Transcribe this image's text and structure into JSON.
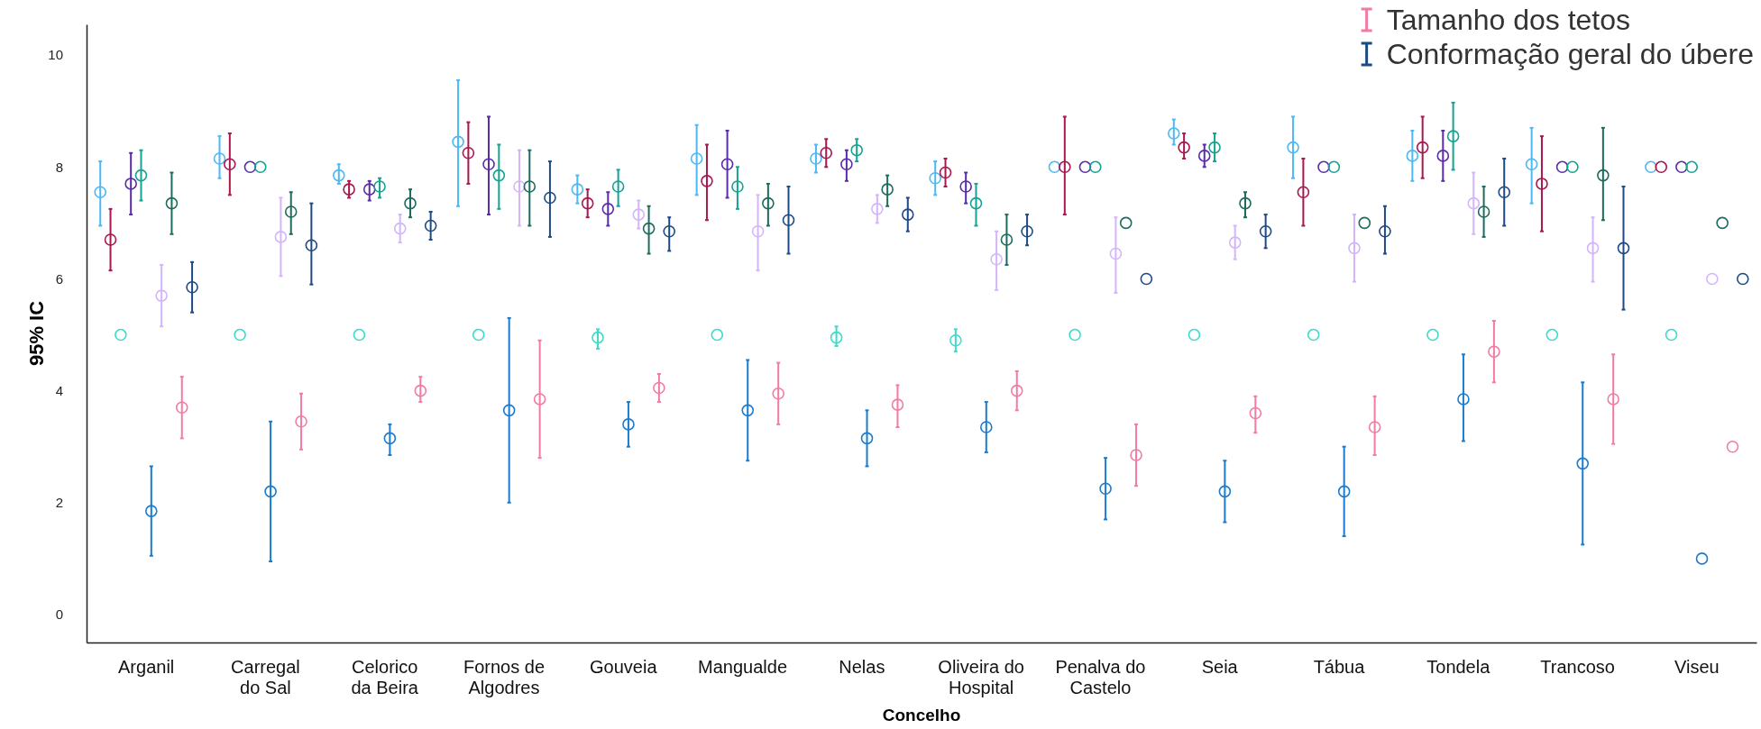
{
  "chart_data": {
    "type": "scatter",
    "xlabel": "Concelho",
    "ylabel": "95% IC",
    "categories": [
      "Arganil",
      "Carregal do Sal",
      "Celorico da Beira",
      "Fornos de Algodres",
      "Gouveia",
      "Mangualde",
      "Nelas",
      "Oliveira do Hospital",
      "Penalva do Castelo",
      "Seia",
      "Tábua",
      "Tondela",
      "Trancoso",
      "Viseu"
    ],
    "ylim": [
      -0.5,
      10.55
    ],
    "yticks": [
      0,
      2,
      4,
      6,
      8,
      10
    ],
    "grid": false,
    "legend": "top right",
    "marker": "circle",
    "series": [
      {
        "color": "#4cb8f5",
        "values": [
          7.55,
          8.15,
          7.85,
          8.45,
          7.6,
          8.15,
          8.15,
          7.8,
          8.0,
          8.6,
          8.35,
          8.2,
          8.05,
          8.0
        ],
        "errors": [
          [
            6.95,
            8.1
          ],
          [
            7.8,
            8.55
          ],
          [
            7.7,
            8.05
          ],
          [
            7.3,
            9.55
          ],
          [
            7.35,
            7.85
          ],
          [
            7.5,
            8.75
          ],
          [
            7.9,
            8.4
          ],
          [
            7.5,
            8.1
          ],
          null,
          [
            8.4,
            8.85
          ],
          [
            7.8,
            8.9
          ],
          [
            7.75,
            8.65
          ],
          [
            7.35,
            8.7
          ],
          null
        ]
      },
      {
        "color": "#a8174f",
        "values": [
          6.7,
          8.05,
          7.6,
          8.25,
          7.35,
          7.75,
          8.25,
          7.9,
          8.0,
          8.35,
          7.55,
          8.35,
          7.7,
          8.0
        ],
        "errors": [
          [
            6.15,
            7.25
          ],
          [
            7.5,
            8.6
          ],
          [
            7.45,
            7.75
          ],
          [
            7.7,
            8.8
          ],
          [
            7.1,
            7.6
          ],
          [
            7.05,
            8.4
          ],
          [
            8.0,
            8.5
          ],
          [
            7.65,
            8.15
          ],
          [
            7.15,
            8.9
          ],
          [
            8.15,
            8.6
          ],
          [
            6.95,
            8.15
          ],
          [
            7.8,
            8.9
          ],
          [
            6.85,
            8.55
          ],
          null
        ]
      },
      {
        "color": "#3ddbc9",
        "values": [
          5.0,
          5.0,
          5.0,
          5.0,
          4.95,
          5.0,
          4.95,
          4.9,
          5.0,
          5.0,
          5.0,
          5.0,
          5.0,
          5.0
        ],
        "errors": [
          null,
          null,
          null,
          null,
          [
            4.75,
            5.1
          ],
          null,
          [
            4.8,
            5.15
          ],
          [
            4.7,
            5.1
          ],
          null,
          null,
          null,
          null,
          null,
          null
        ]
      },
      {
        "color": "#5a2ca8",
        "values": [
          7.7,
          8.0,
          7.6,
          8.05,
          7.25,
          8.05,
          8.05,
          7.65,
          8.0,
          8.2,
          8.0,
          8.2,
          8.0,
          8.0
        ],
        "errors": [
          [
            7.15,
            8.25
          ],
          null,
          [
            7.4,
            7.75
          ],
          [
            7.15,
            8.9
          ],
          [
            6.95,
            7.55
          ],
          [
            7.45,
            8.65
          ],
          [
            7.75,
            8.3
          ],
          [
            7.35,
            7.9
          ],
          null,
          [
            8.0,
            8.4
          ],
          null,
          [
            7.75,
            8.65
          ],
          null,
          null
        ]
      },
      {
        "color": "#14a391",
        "values": [
          7.85,
          8.0,
          7.65,
          7.85,
          7.65,
          7.65,
          8.3,
          7.35,
          8.0,
          8.35,
          8.0,
          8.55,
          8.0,
          8.0
        ],
        "errors": [
          [
            7.4,
            8.3
          ],
          null,
          [
            7.45,
            7.8
          ],
          [
            7.25,
            8.4
          ],
          [
            7.3,
            7.95
          ],
          [
            7.25,
            8.0
          ],
          [
            8.1,
            8.5
          ],
          [
            6.95,
            7.7
          ],
          null,
          [
            8.1,
            8.6
          ],
          null,
          [
            7.95,
            9.15
          ],
          null,
          null
        ]
      },
      {
        "color": "#1b7ccf",
        "values": [
          1.85,
          2.2,
          3.15,
          3.65,
          3.4,
          3.65,
          3.15,
          3.35,
          2.25,
          2.2,
          2.2,
          3.85,
          2.7,
          1.0
        ],
        "errors": [
          [
            1.05,
            2.65
          ],
          [
            0.95,
            3.45
          ],
          [
            2.85,
            3.4
          ],
          [
            2.0,
            5.3
          ],
          [
            3.0,
            3.8
          ],
          [
            2.75,
            4.55
          ],
          [
            2.65,
            3.65
          ],
          [
            2.9,
            3.8
          ],
          [
            1.7,
            2.8
          ],
          [
            1.65,
            2.75
          ],
          [
            1.4,
            3.0
          ],
          [
            3.1,
            4.65
          ],
          [
            1.25,
            4.15
          ],
          null
        ]
      },
      {
        "color": "#d4b5fc",
        "values": [
          5.7,
          6.75,
          6.9,
          7.65,
          7.15,
          6.85,
          7.25,
          6.35,
          6.45,
          6.65,
          6.55,
          7.35,
          6.55,
          6.0
        ],
        "errors": [
          [
            5.15,
            6.25
          ],
          [
            6.05,
            7.45
          ],
          [
            6.65,
            7.15
          ],
          [
            6.95,
            8.3
          ],
          [
            6.9,
            7.4
          ],
          [
            6.15,
            7.5
          ],
          [
            7.0,
            7.5
          ],
          [
            5.8,
            6.85
          ],
          [
            5.75,
            7.1
          ],
          [
            6.35,
            6.95
          ],
          [
            5.95,
            7.15
          ],
          [
            6.8,
            7.9
          ],
          [
            5.95,
            7.1
          ],
          null
        ]
      },
      {
        "color": "#1c6b5d",
        "values": [
          7.35,
          7.2,
          7.35,
          7.65,
          6.9,
          7.35,
          7.6,
          6.7,
          7.0,
          7.35,
          7.0,
          7.2,
          7.85,
          7.0
        ],
        "errors": [
          [
            6.8,
            7.9
          ],
          [
            6.8,
            7.55
          ],
          [
            7.1,
            7.6
          ],
          [
            6.95,
            8.3
          ],
          [
            6.45,
            7.3
          ],
          [
            6.95,
            7.7
          ],
          [
            7.3,
            7.85
          ],
          [
            6.25,
            7.15
          ],
          null,
          [
            7.1,
            7.55
          ],
          null,
          [
            6.75,
            7.65
          ],
          [
            7.05,
            8.7
          ],
          null
        ]
      },
      {
        "name": "Tamanho dos tetos",
        "color": "#f27ba6",
        "values": [
          3.7,
          3.45,
          4.0,
          3.85,
          4.05,
          3.95,
          3.75,
          4.0,
          2.85,
          3.6,
          3.35,
          4.7,
          3.85,
          3.0
        ],
        "errors": [
          [
            3.15,
            4.25
          ],
          [
            2.95,
            3.95
          ],
          [
            3.8,
            4.25
          ],
          [
            2.8,
            4.9
          ],
          [
            3.8,
            4.3
          ],
          [
            3.4,
            4.5
          ],
          [
            3.35,
            4.1
          ],
          [
            3.65,
            4.35
          ],
          [
            2.3,
            3.4
          ],
          [
            3.25,
            3.9
          ],
          [
            2.85,
            3.9
          ],
          [
            4.15,
            5.25
          ],
          [
            3.05,
            4.65
          ],
          null
        ]
      },
      {
        "name": "Conformação geral do úbere",
        "color": "#1d4a85",
        "values": [
          5.85,
          6.6,
          6.95,
          7.45,
          6.85,
          7.05,
          7.15,
          6.85,
          6.0,
          6.85,
          6.85,
          7.55,
          6.55,
          6.0
        ],
        "errors": [
          [
            5.4,
            6.3
          ],
          [
            5.9,
            7.35
          ],
          [
            6.7,
            7.2
          ],
          [
            6.75,
            8.1
          ],
          [
            6.5,
            7.1
          ],
          [
            6.45,
            7.65
          ],
          [
            6.85,
            7.45
          ],
          [
            6.6,
            7.15
          ],
          null,
          [
            6.55,
            7.15
          ],
          [
            6.45,
            7.3
          ],
          [
            6.95,
            8.15
          ],
          [
            5.45,
            7.65
          ],
          null
        ]
      }
    ]
  }
}
